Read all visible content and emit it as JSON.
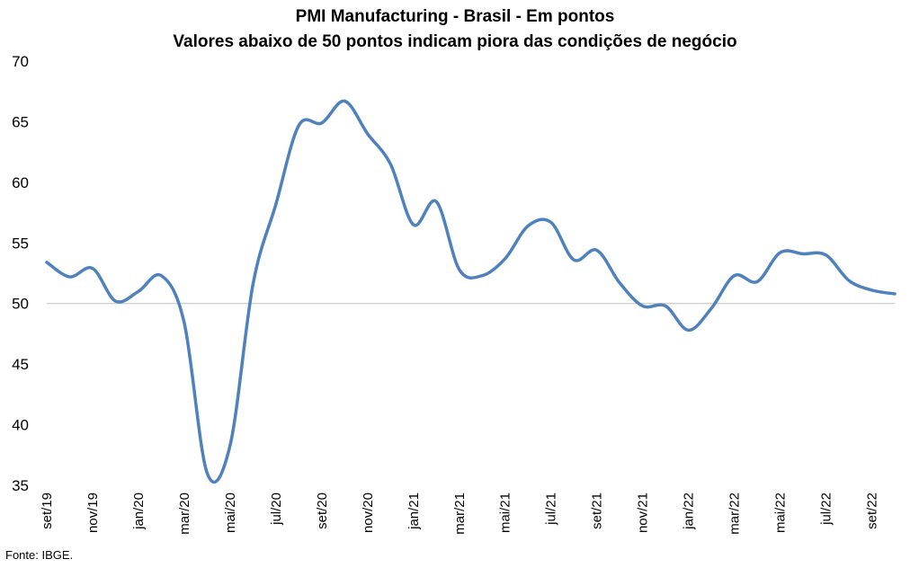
{
  "chart_data": {
    "type": "line",
    "title": "PMI Manufacturing - Brasil - Em pontos",
    "subtitle": "Valores abaixo de 50 pontos indicam piora das condições de negócio",
    "xlabel": "",
    "ylabel": "",
    "ylim": [
      35,
      70
    ],
    "yticks": [
      "35",
      "40",
      "45",
      "50",
      "55",
      "60",
      "65",
      "70"
    ],
    "reference_line": 50,
    "x": [
      "set/19",
      "out/19",
      "nov/19",
      "dez/19",
      "jan/20",
      "fev/20",
      "mar/20",
      "abr/20",
      "mai/20",
      "jun/20",
      "jul/20",
      "ago/20",
      "set/20",
      "out/20",
      "nov/20",
      "dez/20",
      "jan/21",
      "fev/21",
      "mar/21",
      "abr/21",
      "mai/21",
      "jun/21",
      "jul/21",
      "ago/21",
      "set/21",
      "out/21",
      "nov/21",
      "dez/21",
      "jan/22",
      "fev/22",
      "mar/22",
      "abr/22",
      "mai/22",
      "jun/22",
      "jul/22",
      "ago/22",
      "set/22",
      "out/22"
    ],
    "xtick_labels": [
      "set/19",
      "",
      "nov/19",
      "",
      "jan/20",
      "",
      "mar/20",
      "",
      "mai/20",
      "",
      "jul/20",
      "",
      "set/20",
      "",
      "nov/20",
      "",
      "jan/21",
      "",
      "mar/21",
      "",
      "mai/21",
      "",
      "jul/21",
      "",
      "set/21",
      "",
      "nov/21",
      "",
      "jan/22",
      "",
      "mar/22",
      "",
      "mai/22",
      "",
      "jul/22",
      "",
      "set/22",
      ""
    ],
    "series": [
      {
        "name": "",
        "color": "#4F81BD",
        "values": [
          53.4,
          52.2,
          52.9,
          50.2,
          51.0,
          52.3,
          48.4,
          36.0,
          38.3,
          51.6,
          58.2,
          64.7,
          64.9,
          66.7,
          64.0,
          61.5,
          56.5,
          58.4,
          52.8,
          52.3,
          53.7,
          56.4,
          56.7,
          53.6,
          54.4,
          51.7,
          49.8,
          49.8,
          47.8,
          49.6,
          52.3,
          51.8,
          54.2,
          54.1,
          54.0,
          51.9,
          51.1,
          50.8
        ]
      }
    ],
    "grid": false
  },
  "source": "Fonte: IBGE."
}
